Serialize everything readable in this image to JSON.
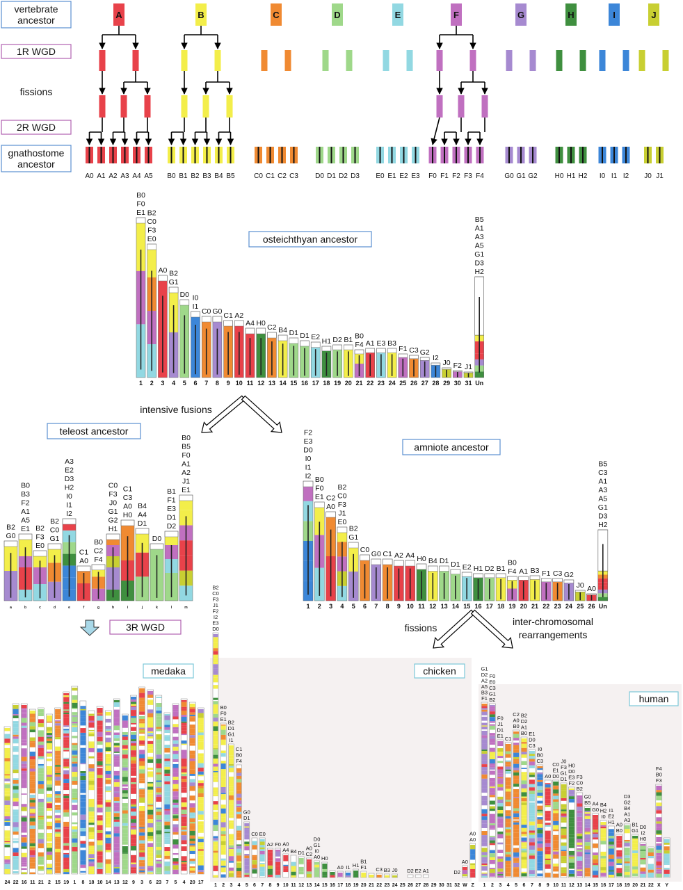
{
  "colors": {
    "A": "#e8424a",
    "B": "#f3ee4a",
    "C": "#f08a32",
    "D": "#9fd88a",
    "E": "#92d8e2",
    "F": "#c070c0",
    "G": "#a68ad0",
    "H": "#3f8f3f",
    "I": "#3c86d8",
    "J": "#c8cf32",
    "Un": "#ffffff"
  },
  "section_labels": {
    "vertebrate_ancestor": "vertebrate ancestor",
    "wgd1": "1R WGD",
    "fissions_top": "fissions",
    "wgd2": "2R WGD",
    "gnathostome": "gnathostome ancestor",
    "osteichthyan": "osteichthyan ancestor",
    "intensive_fusions": "intensive fusions",
    "teleost": "teleost ancestor",
    "amniote": "amniote ancestor",
    "wgd3": "3R WGD",
    "fissions_mid": "fissions",
    "interchrom": "inter-chromosomal rearrangements",
    "medaka": "medaka",
    "chicken": "chicken",
    "human": "human"
  },
  "vertebrate_ancestors": [
    "A",
    "B",
    "C",
    "D",
    "E",
    "F",
    "G",
    "H",
    "I",
    "J"
  ],
  "gnathostome_chromosomes": {
    "A": [
      "A0",
      "A1",
      "A2",
      "A3",
      "A4",
      "A5"
    ],
    "B": [
      "B0",
      "B1",
      "B2",
      "B3",
      "B4",
      "B5"
    ],
    "C": [
      "C0",
      "C1",
      "C2",
      "C3"
    ],
    "D": [
      "D0",
      "D1",
      "D2",
      "D3"
    ],
    "E": [
      "E0",
      "E1",
      "E2",
      "E3"
    ],
    "F": [
      "F0",
      "F1",
      "F2",
      "F3",
      "F4"
    ],
    "G": [
      "G0",
      "G1",
      "G2"
    ],
    "H": [
      "H0",
      "H1",
      "H2"
    ],
    "I": [
      "I0",
      "I1",
      "I2"
    ],
    "J": [
      "J0",
      "J1"
    ]
  },
  "osteichthyan_karyotype": [
    {
      "n": "1",
      "labels": [
        "B0",
        "F0",
        "E1"
      ]
    },
    {
      "n": "2",
      "labels": [
        "B2",
        "C0",
        "F3",
        "E0"
      ]
    },
    {
      "n": "3",
      "labels": [
        "A0"
      ]
    },
    {
      "n": "4",
      "labels": [
        "B2",
        "G1"
      ]
    },
    {
      "n": "5",
      "labels": [
        "D0"
      ]
    },
    {
      "n": "6",
      "labels": [
        "I0",
        "I1"
      ]
    },
    {
      "n": "7",
      "labels": [
        "C0"
      ]
    },
    {
      "n": "8",
      "labels": [
        "G0"
      ]
    },
    {
      "n": "9",
      "labels": [
        "C1"
      ]
    },
    {
      "n": "10",
      "labels": [
        "A2"
      ]
    },
    {
      "n": "11",
      "labels": [
        "A4"
      ]
    },
    {
      "n": "12",
      "labels": [
        "H0"
      ]
    },
    {
      "n": "13",
      "labels": [
        "C2"
      ]
    },
    {
      "n": "14",
      "labels": [
        "B4"
      ]
    },
    {
      "n": "15",
      "labels": [
        "D1"
      ]
    },
    {
      "n": "16",
      "labels": [
        "D1"
      ]
    },
    {
      "n": "17",
      "labels": [
        "E2"
      ]
    },
    {
      "n": "18",
      "labels": [
        "H1"
      ]
    },
    {
      "n": "19",
      "labels": [
        "D2"
      ]
    },
    {
      "n": "20",
      "labels": [
        "B1"
      ]
    },
    {
      "n": "21",
      "labels": [
        "B0",
        "F4"
      ]
    },
    {
      "n": "22",
      "labels": [
        "A1"
      ]
    },
    {
      "n": "23",
      "labels": [
        "E3"
      ]
    },
    {
      "n": "24",
      "labels": [
        "B3"
      ]
    },
    {
      "n": "25",
      "labels": [
        "F1"
      ]
    },
    {
      "n": "26",
      "labels": [
        "C3"
      ]
    },
    {
      "n": "27",
      "labels": [
        "G2"
      ]
    },
    {
      "n": "28",
      "labels": [
        "I2"
      ]
    },
    {
      "n": "29",
      "labels": [
        "J0"
      ]
    },
    {
      "n": "30",
      "labels": [
        "F2"
      ]
    },
    {
      "n": "31",
      "labels": [
        "J1"
      ]
    },
    {
      "n": "Un",
      "labels": [
        "B5",
        "A1",
        "A3",
        "A5",
        "G1",
        "D3",
        "H2"
      ]
    }
  ],
  "teleost_karyotype": [
    {
      "n": "a",
      "labels": [
        "B2",
        "G0"
      ]
    },
    {
      "n": "b",
      "labels": [
        "B0",
        "B3",
        "F2",
        "A1",
        "A5",
        "E1"
      ]
    },
    {
      "n": "c",
      "labels": [
        "B2",
        "F3",
        "E0"
      ]
    },
    {
      "n": "d",
      "labels": [
        "B2",
        "C0",
        "G1"
      ]
    },
    {
      "n": "e",
      "labels": [
        "A3",
        "E2",
        "D3",
        "H2",
        "I0",
        "I1",
        "I2"
      ]
    },
    {
      "n": "f",
      "labels": [
        "C1",
        "A0"
      ]
    },
    {
      "n": "g",
      "labels": [
        "B0",
        "C2",
        "F4"
      ]
    },
    {
      "n": "h",
      "labels": [
        "C0",
        "F3",
        "J0",
        "G1",
        "G2",
        "H1"
      ]
    },
    {
      "n": "i",
      "labels": [
        "C1",
        "C3",
        "A0",
        "H0"
      ]
    },
    {
      "n": "j",
      "labels": [
        "B4",
        "A4",
        "D1"
      ]
    },
    {
      "n": "k",
      "labels": [
        "D0"
      ]
    },
    {
      "n": "l",
      "labels": [
        "B1",
        "F1",
        "E3",
        "D1",
        "D2"
      ]
    },
    {
      "n": "m",
      "labels": [
        "B0",
        "B5",
        "F0",
        "A1",
        "A2",
        "J1",
        "E1"
      ]
    }
  ],
  "amniote_karyotype": [
    {
      "n": "1",
      "labels": [
        "F2",
        "E3",
        "D0",
        "I0",
        "I1",
        "I2"
      ]
    },
    {
      "n": "2",
      "labels": [
        "B0",
        "F0",
        "E1"
      ]
    },
    {
      "n": "3",
      "labels": [
        "C2",
        "A0"
      ]
    },
    {
      "n": "4",
      "labels": [
        "B2",
        "C0",
        "F3",
        "J1",
        "E0"
      ]
    },
    {
      "n": "5",
      "labels": [
        "B2",
        "G1"
      ]
    },
    {
      "n": "6",
      "labels": [
        "C0"
      ]
    },
    {
      "n": "7",
      "labels": [
        "G0"
      ]
    },
    {
      "n": "8",
      "labels": [
        "C1"
      ]
    },
    {
      "n": "9",
      "labels": [
        "A2"
      ]
    },
    {
      "n": "10",
      "labels": [
        "A4"
      ]
    },
    {
      "n": "11",
      "labels": [
        "H0"
      ]
    },
    {
      "n": "12",
      "labels": [
        "B4"
      ]
    },
    {
      "n": "13",
      "labels": [
        "D1"
      ]
    },
    {
      "n": "14",
      "labels": [
        "D1"
      ]
    },
    {
      "n": "15",
      "labels": [
        "E2"
      ]
    },
    {
      "n": "16",
      "labels": [
        "H1"
      ]
    },
    {
      "n": "17",
      "labels": [
        "D2"
      ]
    },
    {
      "n": "18",
      "labels": [
        "B1"
      ]
    },
    {
      "n": "19",
      "labels": [
        "B0",
        "F4"
      ]
    },
    {
      "n": "20",
      "labels": [
        "A1"
      ]
    },
    {
      "n": "21",
      "labels": [
        "B3"
      ]
    },
    {
      "n": "22",
      "labels": [
        "F1"
      ]
    },
    {
      "n": "23",
      "labels": [
        "C3"
      ]
    },
    {
      "n": "24",
      "labels": [
        "G2"
      ]
    },
    {
      "n": "25",
      "labels": [
        "J0"
      ]
    },
    {
      "n": "26",
      "labels": [
        "A0"
      ]
    },
    {
      "n": "Un",
      "labels": [
        "B5",
        "C3",
        "A1",
        "A3",
        "A5",
        "G1",
        "D3",
        "H2"
      ]
    }
  ],
  "medaka_numbers": [
    "24",
    "22",
    "16",
    "11",
    "21",
    "2",
    "15",
    "19",
    "1",
    "8",
    "18",
    "10",
    "14",
    "13",
    "12",
    "9",
    "3",
    "6",
    "23",
    "7",
    "5",
    "4",
    "20",
    "17"
  ],
  "chicken_numbers": [
    "1",
    "2",
    "3",
    "4",
    "5",
    "6",
    "7",
    "8",
    "9",
    "10",
    "11",
    "12",
    "13",
    "14",
    "15",
    "16",
    "17",
    "18",
    "19",
    "20",
    "21",
    "22",
    "23",
    "24",
    "25",
    "26",
    "27",
    "28",
    "29",
    "30",
    "31",
    "32",
    "W",
    "Z"
  ],
  "chicken_labels": [
    [
      "B2",
      "C0",
      "F3",
      "J1",
      "F2",
      "I2",
      "E3",
      "D0"
    ],
    [
      "B0",
      "F0",
      "E1"
    ],
    [
      "B2",
      "D1",
      "G1",
      "I1"
    ],
    [
      "C1",
      "B0",
      "F4"
    ],
    [
      "G0",
      "D1"
    ],
    [
      "C0"
    ],
    [
      "E0"
    ],
    [
      "A2"
    ],
    [
      "F0"
    ],
    [
      "A0",
      "A4"
    ],
    [
      "B4"
    ],
    [
      "D1"
    ],
    [
      "A0",
      "C2"
    ],
    [
      "D0",
      "G1",
      "I0",
      "A0"
    ],
    [
      "H0"
    ],
    [],
    [
      "A0"
    ],
    [
      "I1"
    ],
    [
      "H1"
    ],
    [
      "B1",
      "F1"
    ],
    [],
    [
      "C3"
    ],
    [
      "B3"
    ],
    [
      "J0"
    ],
    [],
    [
      "D2"
    ],
    [
      "E2"
    ],
    [
      "A1"
    ],
    [],
    [],
    [],
    [
      "D2"
    ],
    [
      "A0"
    ],
    [
      "A0",
      "A0"
    ]
  ],
  "human_numbers": [
    "1",
    "2",
    "3",
    "4",
    "5",
    "6",
    "7",
    "8",
    "9",
    "10",
    "11",
    "12",
    "13",
    "14",
    "15",
    "16",
    "17",
    "18",
    "19",
    "20",
    "21",
    "22",
    "X",
    "Y"
  ],
  "human_labels": [
    [
      "G1",
      "D2",
      "A2",
      "A5",
      "B3",
      "F1"
    ],
    [
      "F0",
      "E0",
      "C3",
      "G1",
      "B2"
    ],
    [
      "F0",
      "J1",
      "D1",
      "E1"
    ],
    [
      "C1"
    ],
    [
      "C2",
      "A0",
      "B0"
    ],
    [
      "B2",
      "D2",
      "A1",
      "B0"
    ],
    [
      "E1",
      "D0",
      "C3"
    ],
    [
      "I0",
      "B0",
      "C3"
    ],
    [
      "A0"
    ],
    [
      "C0",
      "E1",
      "D0"
    ],
    [
      "J0",
      "F3",
      "G1",
      "D1"
    ],
    [
      "H0",
      "D0",
      "E3",
      "F2"
    ],
    [
      "F3",
      "C0",
      "B2"
    ],
    [
      "G0",
      "B5"
    ],
    [
      "A4",
      "G0"
    ],
    [
      "B4",
      "H2",
      "I0"
    ],
    [
      "I1",
      "E2",
      "H1"
    ],
    [
      "A0",
      "B0"
    ],
    [
      "D3",
      "G2",
      "B4",
      "A1",
      "A3"
    ],
    [
      "B1",
      "G1"
    ],
    [
      "D0",
      "I2",
      "H0"
    ],
    [],
    [
      "F4",
      "B0",
      "F3"
    ],
    []
  ]
}
